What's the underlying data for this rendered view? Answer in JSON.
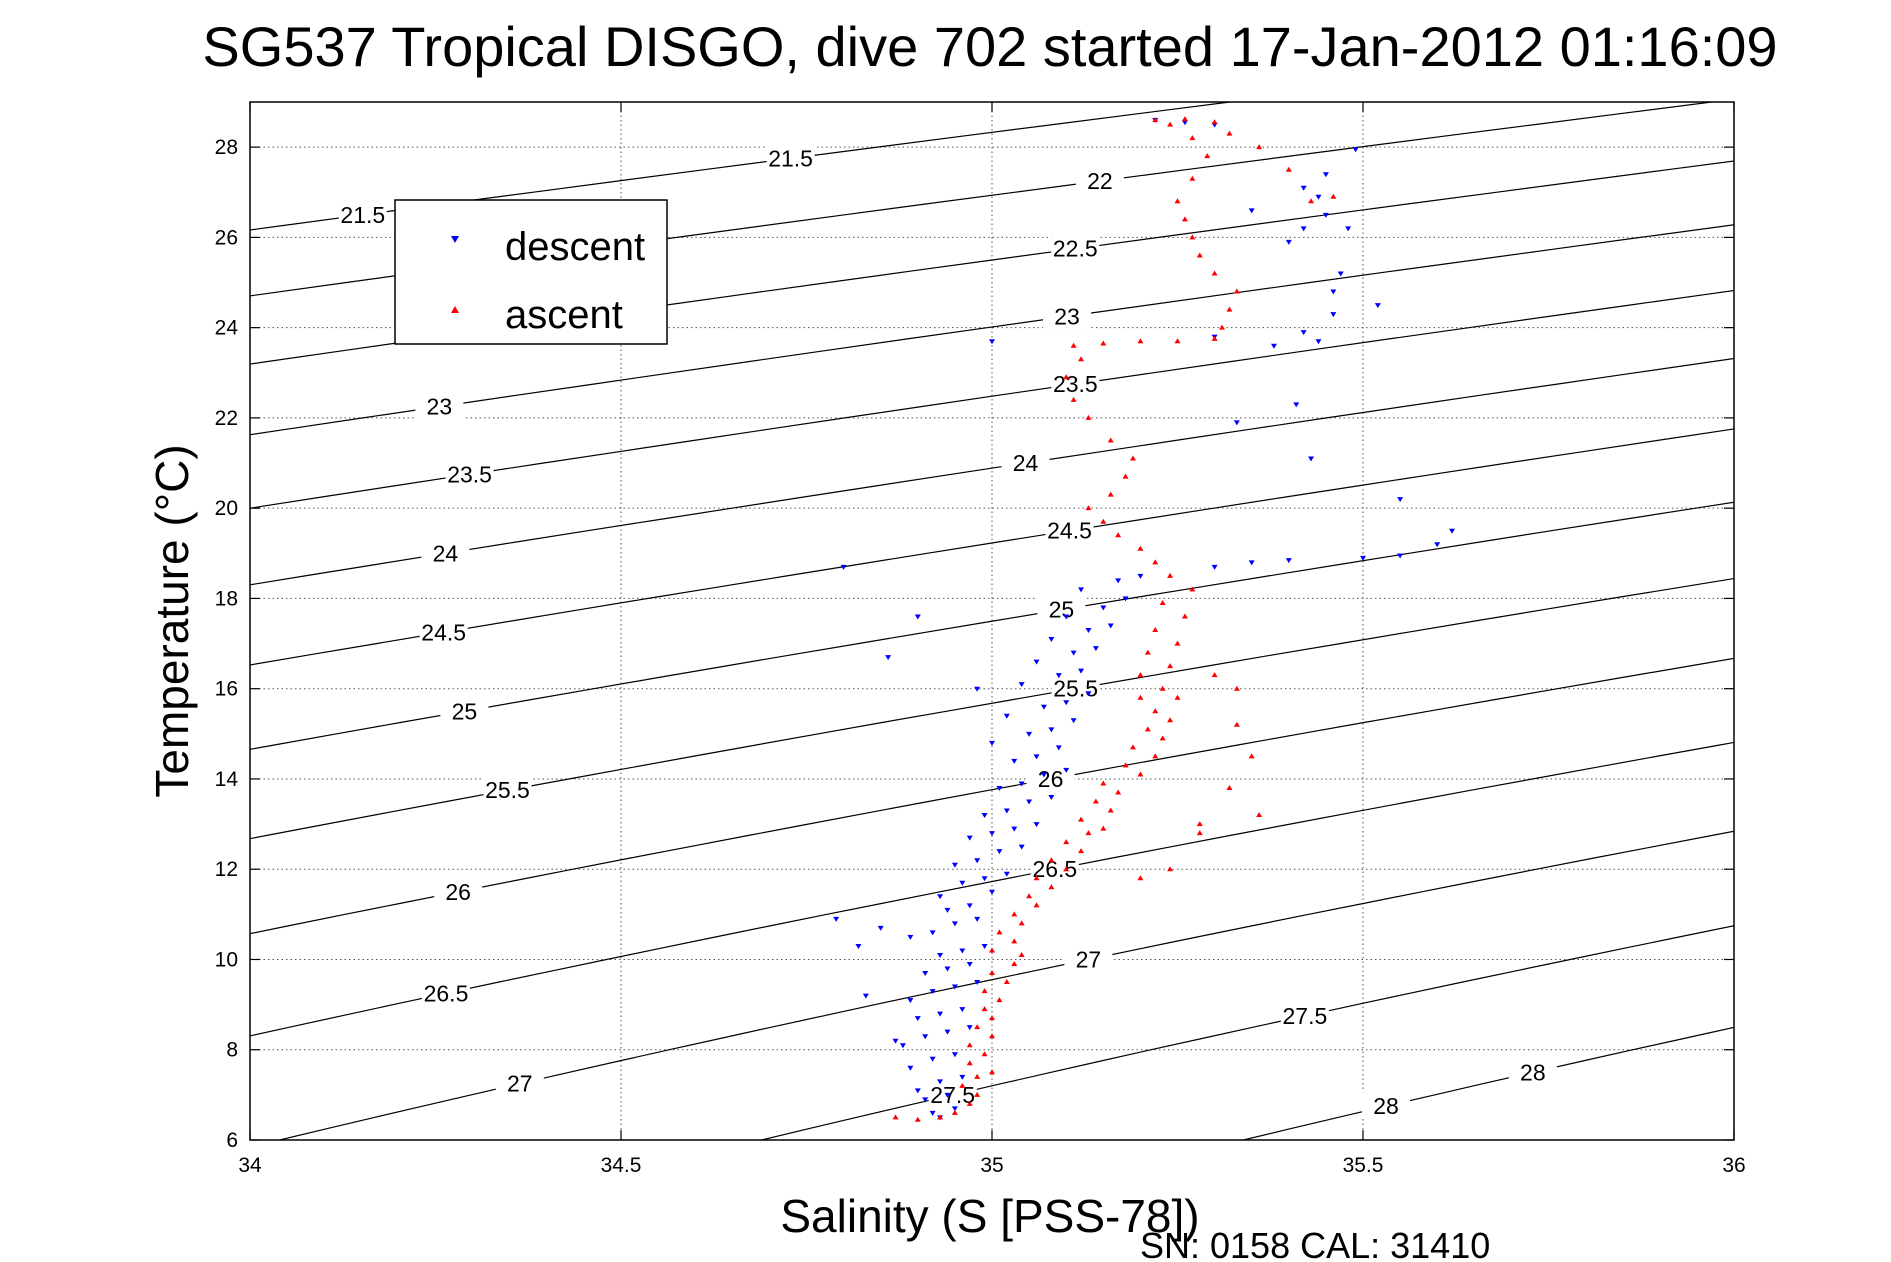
{
  "chart_data": {
    "type": "scatter",
    "title": "SG537 Tropical DISGO, dive 702 started 17-Jan-2012 01:16:09",
    "xlabel": "Salinity (S [PSS-78])",
    "ylabel": "Temperature (°C)",
    "xlim": [
      34,
      36
    ],
    "ylim": [
      6,
      29
    ],
    "xticks": [
      "34",
      "34.5",
      "35",
      "35.5",
      "36"
    ],
    "yticks": [
      "6",
      "8",
      "10",
      "12",
      "14",
      "16",
      "18",
      "20",
      "22",
      "24",
      "26",
      "28"
    ],
    "grid": true,
    "legend": {
      "position": "top-left",
      "entries": [
        "descent",
        "ascent"
      ]
    },
    "series": [
      {
        "name": "descent",
        "color": "#0000ff",
        "marker": "triangle-down",
        "points": [
          [
            34.93,
            6.5
          ],
          [
            34.92,
            6.6
          ],
          [
            34.95,
            6.7
          ],
          [
            34.91,
            6.9
          ],
          [
            34.94,
            7.0
          ],
          [
            34.9,
            7.1
          ],
          [
            34.93,
            7.3
          ],
          [
            34.96,
            7.4
          ],
          [
            34.89,
            7.6
          ],
          [
            34.92,
            7.8
          ],
          [
            34.95,
            7.9
          ],
          [
            34.88,
            8.1
          ],
          [
            34.91,
            8.3
          ],
          [
            34.94,
            8.4
          ],
          [
            34.97,
            8.5
          ],
          [
            34.9,
            8.7
          ],
          [
            34.93,
            8.8
          ],
          [
            34.96,
            8.9
          ],
          [
            34.89,
            9.1
          ],
          [
            34.92,
            9.3
          ],
          [
            34.95,
            9.4
          ],
          [
            34.98,
            9.5
          ],
          [
            34.91,
            9.7
          ],
          [
            34.94,
            9.8
          ],
          [
            34.97,
            9.9
          ],
          [
            34.93,
            10.1
          ],
          [
            34.96,
            10.2
          ],
          [
            34.99,
            10.3
          ],
          [
            34.89,
            10.5
          ],
          [
            34.92,
            10.6
          ],
          [
            34.95,
            10.8
          ],
          [
            34.98,
            10.9
          ],
          [
            34.94,
            11.1
          ],
          [
            34.97,
            11.2
          ],
          [
            34.93,
            11.4
          ],
          [
            35.0,
            11.5
          ],
          [
            34.96,
            11.7
          ],
          [
            34.99,
            11.8
          ],
          [
            35.02,
            11.9
          ],
          [
            34.95,
            12.1
          ],
          [
            34.98,
            12.2
          ],
          [
            35.01,
            12.4
          ],
          [
            35.04,
            12.5
          ],
          [
            34.97,
            12.7
          ],
          [
            35.0,
            12.8
          ],
          [
            35.03,
            12.9
          ],
          [
            35.06,
            13.0
          ],
          [
            34.99,
            13.2
          ],
          [
            35.02,
            13.3
          ],
          [
            35.05,
            13.5
          ],
          [
            35.08,
            13.6
          ],
          [
            35.01,
            13.8
          ],
          [
            35.04,
            13.9
          ],
          [
            35.07,
            14.1
          ],
          [
            35.1,
            14.2
          ],
          [
            35.03,
            14.4
          ],
          [
            35.06,
            14.5
          ],
          [
            35.09,
            14.7
          ],
          [
            35.0,
            14.8
          ],
          [
            35.05,
            15.0
          ],
          [
            35.08,
            15.1
          ],
          [
            35.11,
            15.3
          ],
          [
            35.02,
            15.4
          ],
          [
            35.07,
            15.6
          ],
          [
            35.1,
            15.7
          ],
          [
            35.13,
            15.9
          ],
          [
            34.98,
            16.0
          ],
          [
            35.04,
            16.1
          ],
          [
            35.09,
            16.3
          ],
          [
            35.12,
            16.4
          ],
          [
            35.06,
            16.6
          ],
          [
            35.11,
            16.8
          ],
          [
            35.14,
            16.9
          ],
          [
            35.08,
            17.1
          ],
          [
            35.13,
            17.3
          ],
          [
            35.16,
            17.4
          ],
          [
            35.1,
            17.6
          ],
          [
            35.15,
            17.8
          ],
          [
            35.18,
            18.0
          ],
          [
            35.12,
            18.2
          ],
          [
            35.17,
            18.4
          ],
          [
            35.2,
            18.5
          ],
          [
            34.86,
            16.7
          ],
          [
            34.82,
            10.3
          ],
          [
            34.85,
            10.7
          ],
          [
            34.79,
            10.9
          ],
          [
            34.83,
            9.2
          ],
          [
            34.87,
            8.2
          ],
          [
            34.8,
            18.7
          ],
          [
            34.9,
            17.6
          ],
          [
            35.3,
            18.7
          ],
          [
            35.35,
            18.8
          ],
          [
            35.4,
            18.85
          ],
          [
            35.5,
            18.9
          ],
          [
            35.55,
            18.95
          ],
          [
            35.6,
            19.2
          ],
          [
            35.62,
            19.5
          ],
          [
            35.55,
            20.2
          ],
          [
            35.43,
            21.1
          ],
          [
            35.41,
            22.3
          ],
          [
            35.33,
            21.9
          ],
          [
            35.38,
            23.6
          ],
          [
            35.42,
            23.9
          ],
          [
            35.44,
            23.7
          ],
          [
            35.3,
            23.8
          ],
          [
            35.0,
            23.7
          ],
          [
            35.46,
            24.3
          ],
          [
            35.46,
            24.8
          ],
          [
            35.52,
            24.5
          ],
          [
            35.47,
            25.2
          ],
          [
            35.4,
            25.9
          ],
          [
            35.42,
            26.2
          ],
          [
            35.45,
            26.5
          ],
          [
            35.44,
            26.9
          ],
          [
            35.48,
            26.2
          ],
          [
            35.35,
            26.6
          ],
          [
            35.42,
            27.1
          ],
          [
            35.45,
            27.4
          ],
          [
            35.49,
            27.95
          ],
          [
            35.3,
            28.5
          ],
          [
            35.26,
            28.55
          ],
          [
            35.22,
            28.6
          ]
        ]
      },
      {
        "name": "ascent",
        "color": "#ff0000",
        "marker": "triangle-up",
        "points": [
          [
            34.87,
            6.5
          ],
          [
            34.9,
            6.45
          ],
          [
            34.93,
            6.5
          ],
          [
            34.95,
            6.6
          ],
          [
            34.97,
            6.8
          ],
          [
            34.98,
            7.0
          ],
          [
            34.96,
            7.2
          ],
          [
            34.98,
            7.4
          ],
          [
            35.0,
            7.5
          ],
          [
            34.97,
            7.7
          ],
          [
            34.99,
            7.9
          ],
          [
            34.97,
            8.1
          ],
          [
            35.0,
            8.3
          ],
          [
            34.98,
            8.5
          ],
          [
            35.0,
            8.7
          ],
          [
            34.99,
            8.9
          ],
          [
            35.01,
            9.1
          ],
          [
            34.99,
            9.3
          ],
          [
            35.02,
            9.5
          ],
          [
            35.0,
            9.7
          ],
          [
            35.03,
            9.9
          ],
          [
            35.04,
            10.1
          ],
          [
            35.0,
            10.2
          ],
          [
            35.03,
            10.4
          ],
          [
            35.01,
            10.6
          ],
          [
            35.04,
            10.8
          ],
          [
            35.03,
            11.0
          ],
          [
            35.06,
            11.2
          ],
          [
            35.05,
            11.4
          ],
          [
            35.08,
            11.6
          ],
          [
            35.06,
            11.8
          ],
          [
            35.1,
            12.0
          ],
          [
            35.08,
            12.2
          ],
          [
            35.12,
            12.4
          ],
          [
            35.1,
            12.6
          ],
          [
            35.13,
            12.8
          ],
          [
            35.15,
            12.9
          ],
          [
            35.12,
            13.1
          ],
          [
            35.16,
            13.3
          ],
          [
            35.14,
            13.5
          ],
          [
            35.17,
            13.7
          ],
          [
            35.15,
            13.9
          ],
          [
            35.2,
            14.1
          ],
          [
            35.18,
            14.3
          ],
          [
            35.22,
            14.5
          ],
          [
            35.19,
            14.7
          ],
          [
            35.23,
            14.9
          ],
          [
            35.21,
            15.1
          ],
          [
            35.24,
            15.3
          ],
          [
            35.22,
            15.5
          ],
          [
            35.2,
            15.8
          ],
          [
            35.25,
            15.8
          ],
          [
            35.23,
            16.0
          ],
          [
            35.2,
            16.3
          ],
          [
            35.24,
            16.5
          ],
          [
            35.21,
            16.8
          ],
          [
            35.25,
            17.0
          ],
          [
            35.22,
            17.3
          ],
          [
            35.26,
            17.6
          ],
          [
            35.23,
            17.9
          ],
          [
            35.27,
            18.2
          ],
          [
            35.24,
            18.5
          ],
          [
            35.22,
            18.8
          ],
          [
            35.2,
            19.1
          ],
          [
            35.17,
            19.4
          ],
          [
            35.15,
            19.7
          ],
          [
            35.13,
            20.0
          ],
          [
            35.16,
            20.3
          ],
          [
            35.18,
            20.7
          ],
          [
            35.19,
            21.1
          ],
          [
            35.16,
            21.5
          ],
          [
            35.13,
            22.0
          ],
          [
            35.11,
            22.4
          ],
          [
            35.1,
            22.9
          ],
          [
            35.12,
            23.3
          ],
          [
            35.11,
            23.6
          ],
          [
            35.15,
            23.65
          ],
          [
            35.2,
            23.7
          ],
          [
            35.25,
            23.7
          ],
          [
            35.3,
            23.75
          ],
          [
            35.31,
            24.0
          ],
          [
            35.32,
            24.4
          ],
          [
            35.33,
            24.8
          ],
          [
            35.3,
            25.2
          ],
          [
            35.28,
            25.6
          ],
          [
            35.27,
            26.0
          ],
          [
            35.26,
            26.4
          ],
          [
            35.25,
            26.8
          ],
          [
            35.27,
            27.3
          ],
          [
            35.29,
            27.8
          ],
          [
            35.27,
            28.2
          ],
          [
            35.24,
            28.5
          ],
          [
            35.22,
            28.6
          ],
          [
            35.26,
            28.62
          ],
          [
            35.3,
            28.55
          ],
          [
            35.32,
            28.3
          ],
          [
            35.36,
            28.0
          ],
          [
            35.4,
            27.5
          ],
          [
            35.43,
            26.8
          ],
          [
            35.46,
            26.9
          ],
          [
            35.3,
            16.3
          ],
          [
            35.33,
            15.2
          ],
          [
            35.35,
            14.5
          ],
          [
            35.32,
            13.8
          ],
          [
            35.36,
            13.2
          ],
          [
            35.28,
            12.8
          ],
          [
            35.24,
            12.0
          ],
          [
            35.2,
            11.8
          ],
          [
            35.28,
            13.0
          ],
          [
            35.33,
            16.0
          ]
        ]
      }
    ],
    "isopycnal_labels": [
      "21.5",
      "22",
      "22.5",
      "23",
      "23.5",
      "24",
      "24.5",
      "25",
      "25.5",
      "26",
      "26.5",
      "27",
      "27.5",
      "28"
    ]
  },
  "footer": "SN: 0158  CAL: 31410"
}
